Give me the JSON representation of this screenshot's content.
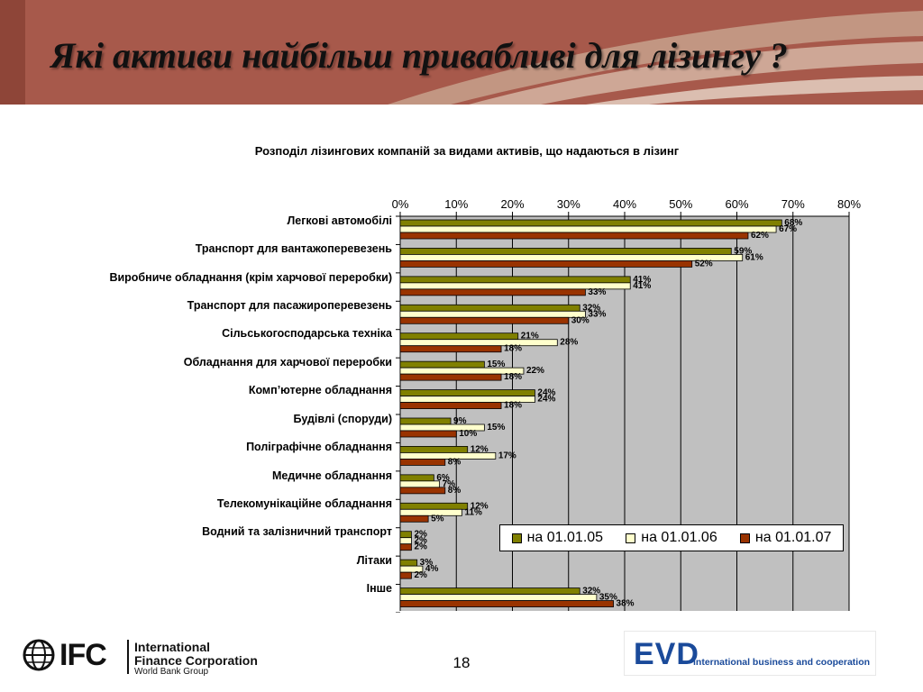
{
  "title": "Які активи найбільш привабливі для лізингу ?",
  "page_number": "18",
  "colors": {
    "header_bg": "#a7594b",
    "plot_bg": "#c0c0c0",
    "series_05": "#808000",
    "series_06": "#ffffcc",
    "series_07": "#993300"
  },
  "footer": {
    "ifc_logo_text": "IFC",
    "ifc_name_line1": "International",
    "ifc_name_line2": "Finance Corporation",
    "ifc_name_line3": "World Bank Group",
    "evd_logo_text": "EVD",
    "evd_slogan": "international business and cooperation"
  },
  "chart_data": {
    "type": "bar",
    "orientation": "horizontal",
    "title": "Розподіл лізингових компаній за видами активів, що надаються в лізинг",
    "xlim": [
      0,
      80
    ],
    "x_ticks": [
      "0%",
      "10%",
      "20%",
      "30%",
      "40%",
      "50%",
      "60%",
      "70%",
      "80%"
    ],
    "x_axis_position": "top",
    "legend_position": "bottom-right",
    "categories": [
      "Легкові автомобілі",
      "Транспорт для вантажоперевезень",
      "Виробниче обладнання (крім  харчової переробки)",
      "Транспорт для пасажироперевезень",
      "Сільськогосподарська техніка",
      "Обладнання для харчової переробки",
      "Комп’ютерне обладнання",
      "Будівлі (споруди)",
      "Поліграфічне обладнання",
      "Медичне обладнання",
      "Телекомунікаційне обладнання",
      "Водний та залізничний транспорт",
      "Літаки",
      "Інше"
    ],
    "series": [
      {
        "name": "на 01.01.05",
        "color": "#808000",
        "values": [
          68,
          59,
          41,
          32,
          21,
          15,
          24,
          9,
          12,
          6,
          12,
          2,
          3,
          32
        ]
      },
      {
        "name": "на 01.01.06",
        "color": "#ffffcc",
        "values": [
          67,
          61,
          41,
          33,
          28,
          22,
          24,
          15,
          17,
          7,
          11,
          2,
          4,
          35
        ]
      },
      {
        "name": "на 01.01.07",
        "color": "#993300",
        "values": [
          62,
          52,
          33,
          30,
          18,
          18,
          18,
          10,
          8,
          8,
          5,
          2,
          2,
          38
        ]
      }
    ]
  }
}
